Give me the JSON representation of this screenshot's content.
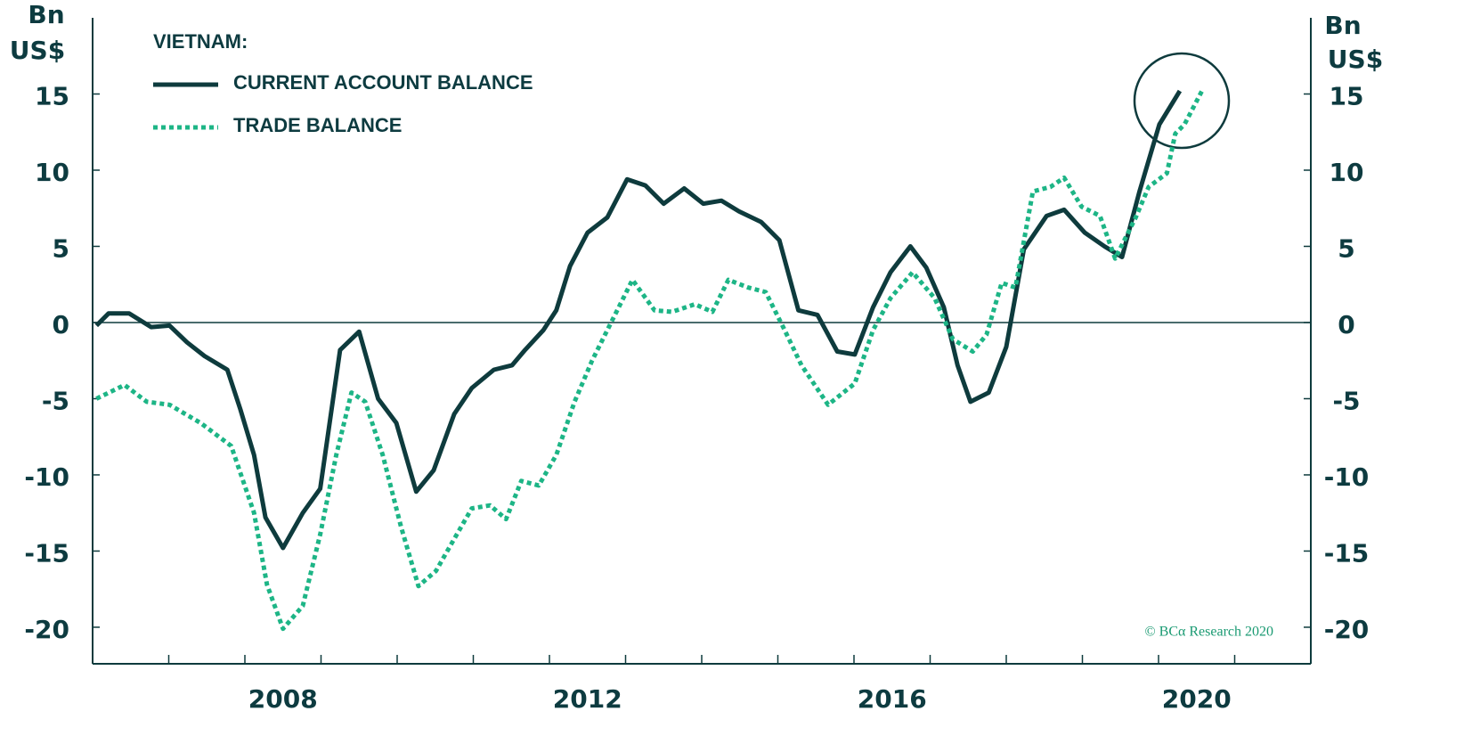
{
  "chart_data": {
    "type": "line",
    "legend_title": "VIETNAM:",
    "ylabel": [
      "Bn",
      "US$"
    ],
    "y2label": [
      "Bn",
      "US$"
    ],
    "watermark": "© BCα Research 2020",
    "xlim": [
      2006,
      2022
    ],
    "xticks": [
      {
        "value": 2008.5,
        "label": "2008"
      },
      {
        "value": 2012.5,
        "label": "2012"
      },
      {
        "value": 2016.5,
        "label": "2016"
      },
      {
        "value": 2020.5,
        "label": "2020"
      }
    ],
    "xminor_ticks": [
      2007,
      2008,
      2009,
      2010,
      2011,
      2012,
      2013,
      2014,
      2015,
      2016,
      2017,
      2018,
      2019,
      2020,
      2021
    ],
    "ylim": [
      -22.4,
      20
    ],
    "yticks": [
      -20,
      -15,
      -10,
      -5,
      0,
      5,
      10,
      15
    ],
    "y2lim": [
      -22.4,
      20
    ],
    "y2ticks": [
      -20,
      -15,
      -10,
      -5,
      0,
      5,
      10,
      15
    ],
    "zero_line": true,
    "series": [
      {
        "name": "CURRENT ACCOUNT BALANCE",
        "color": "#0e3b3d",
        "style": "solid",
        "x": [
          2006.05,
          2006.21,
          2006.48,
          2006.77,
          2007.01,
          2007.24,
          2007.47,
          2007.77,
          2007.94,
          2008.12,
          2008.27,
          2008.5,
          2008.76,
          2008.99,
          2009.25,
          2009.5,
          2009.75,
          2009.99,
          2010.25,
          2010.48,
          2010.75,
          2010.98,
          2011.27,
          2011.51,
          2011.68,
          2011.92,
          2012.09,
          2012.27,
          2012.5,
          2012.76,
          2013.02,
          2013.26,
          2013.5,
          2013.77,
          2014.02,
          2014.26,
          2014.49,
          2014.78,
          2015.02,
          2015.27,
          2015.52,
          2015.78,
          2016.01,
          2016.25,
          2016.48,
          2016.74,
          2016.95,
          2017.18,
          2017.36,
          2017.53,
          2017.77,
          2018.0,
          2018.23,
          2018.53,
          2018.76,
          2019.03,
          2019.29,
          2019.52,
          2019.75,
          2020.01,
          2020.28
        ],
        "values": [
          -0.2,
          0.6,
          0.6,
          -0.3,
          -0.2,
          -1.3,
          -2.2,
          -3.1,
          -5.7,
          -8.7,
          -12.8,
          -14.8,
          -12.5,
          -10.9,
          -1.8,
          -0.6,
          -5,
          -6.6,
          -11.1,
          -9.7,
          -6,
          -4.3,
          -3.1,
          -2.8,
          -1.8,
          -0.5,
          0.8,
          3.7,
          5.9,
          6.9,
          9.4,
          9.0,
          7.8,
          8.8,
          7.8,
          8.0,
          7.3,
          6.6,
          5.4,
          0.8,
          0.5,
          -1.9,
          -2.1,
          1.0,
          3.3,
          5.0,
          3.6,
          1.0,
          -2.8,
          -5.2,
          -4.6,
          -1.6,
          4.8,
          7.0,
          7.4,
          5.9,
          5.0,
          4.3,
          8.6,
          13.0,
          15.2
        ]
      },
      {
        "name": "TRADE BALANCE",
        "color": "#1db586",
        "style": "dotted",
        "x": [
          2006.05,
          2006.42,
          2006.71,
          2007.01,
          2007.42,
          2007.82,
          2008.12,
          2008.29,
          2008.5,
          2008.76,
          2008.99,
          2009.2,
          2009.4,
          2009.58,
          2009.81,
          2010.05,
          2010.28,
          2010.51,
          2010.75,
          2010.98,
          2011.22,
          2011.43,
          2011.63,
          2011.86,
          2012.09,
          2012.33,
          2012.56,
          2012.85,
          2013.09,
          2013.38,
          2013.61,
          2013.91,
          2014.14,
          2014.35,
          2014.61,
          2014.84,
          2015.08,
          2015.31,
          2015.66,
          2016.01,
          2016.25,
          2016.48,
          2016.77,
          2017.06,
          2017.3,
          2017.56,
          2017.74,
          2017.94,
          2018.12,
          2018.35,
          2018.58,
          2018.76,
          2018.99,
          2019.23,
          2019.43,
          2019.7,
          2019.87,
          2020.11,
          2020.22,
          2020.34,
          2020.57
        ],
        "values": [
          -5,
          -4.1,
          -5.2,
          -5.4,
          -6.6,
          -8.1,
          -12.5,
          -17.2,
          -20.1,
          -18.6,
          -13.9,
          -8.7,
          -4.6,
          -5.2,
          -8.7,
          -13.4,
          -17.3,
          -16.3,
          -14.2,
          -12.2,
          -12.0,
          -12.9,
          -10.4,
          -10.7,
          -8.7,
          -5.2,
          -2.5,
          0.4,
          2.8,
          0.8,
          0.7,
          1.2,
          0.7,
          2.8,
          2.3,
          2.0,
          -0.4,
          -2.8,
          -5.4,
          -4.0,
          -0.5,
          1.6,
          3.3,
          1.6,
          -1.1,
          -1.9,
          -0.8,
          2.6,
          2.3,
          8.6,
          8.9,
          9.5,
          7.6,
          7.0,
          4.2,
          6.9,
          8.9,
          9.8,
          12.4,
          13.0,
          15.2
        ]
      }
    ]
  }
}
